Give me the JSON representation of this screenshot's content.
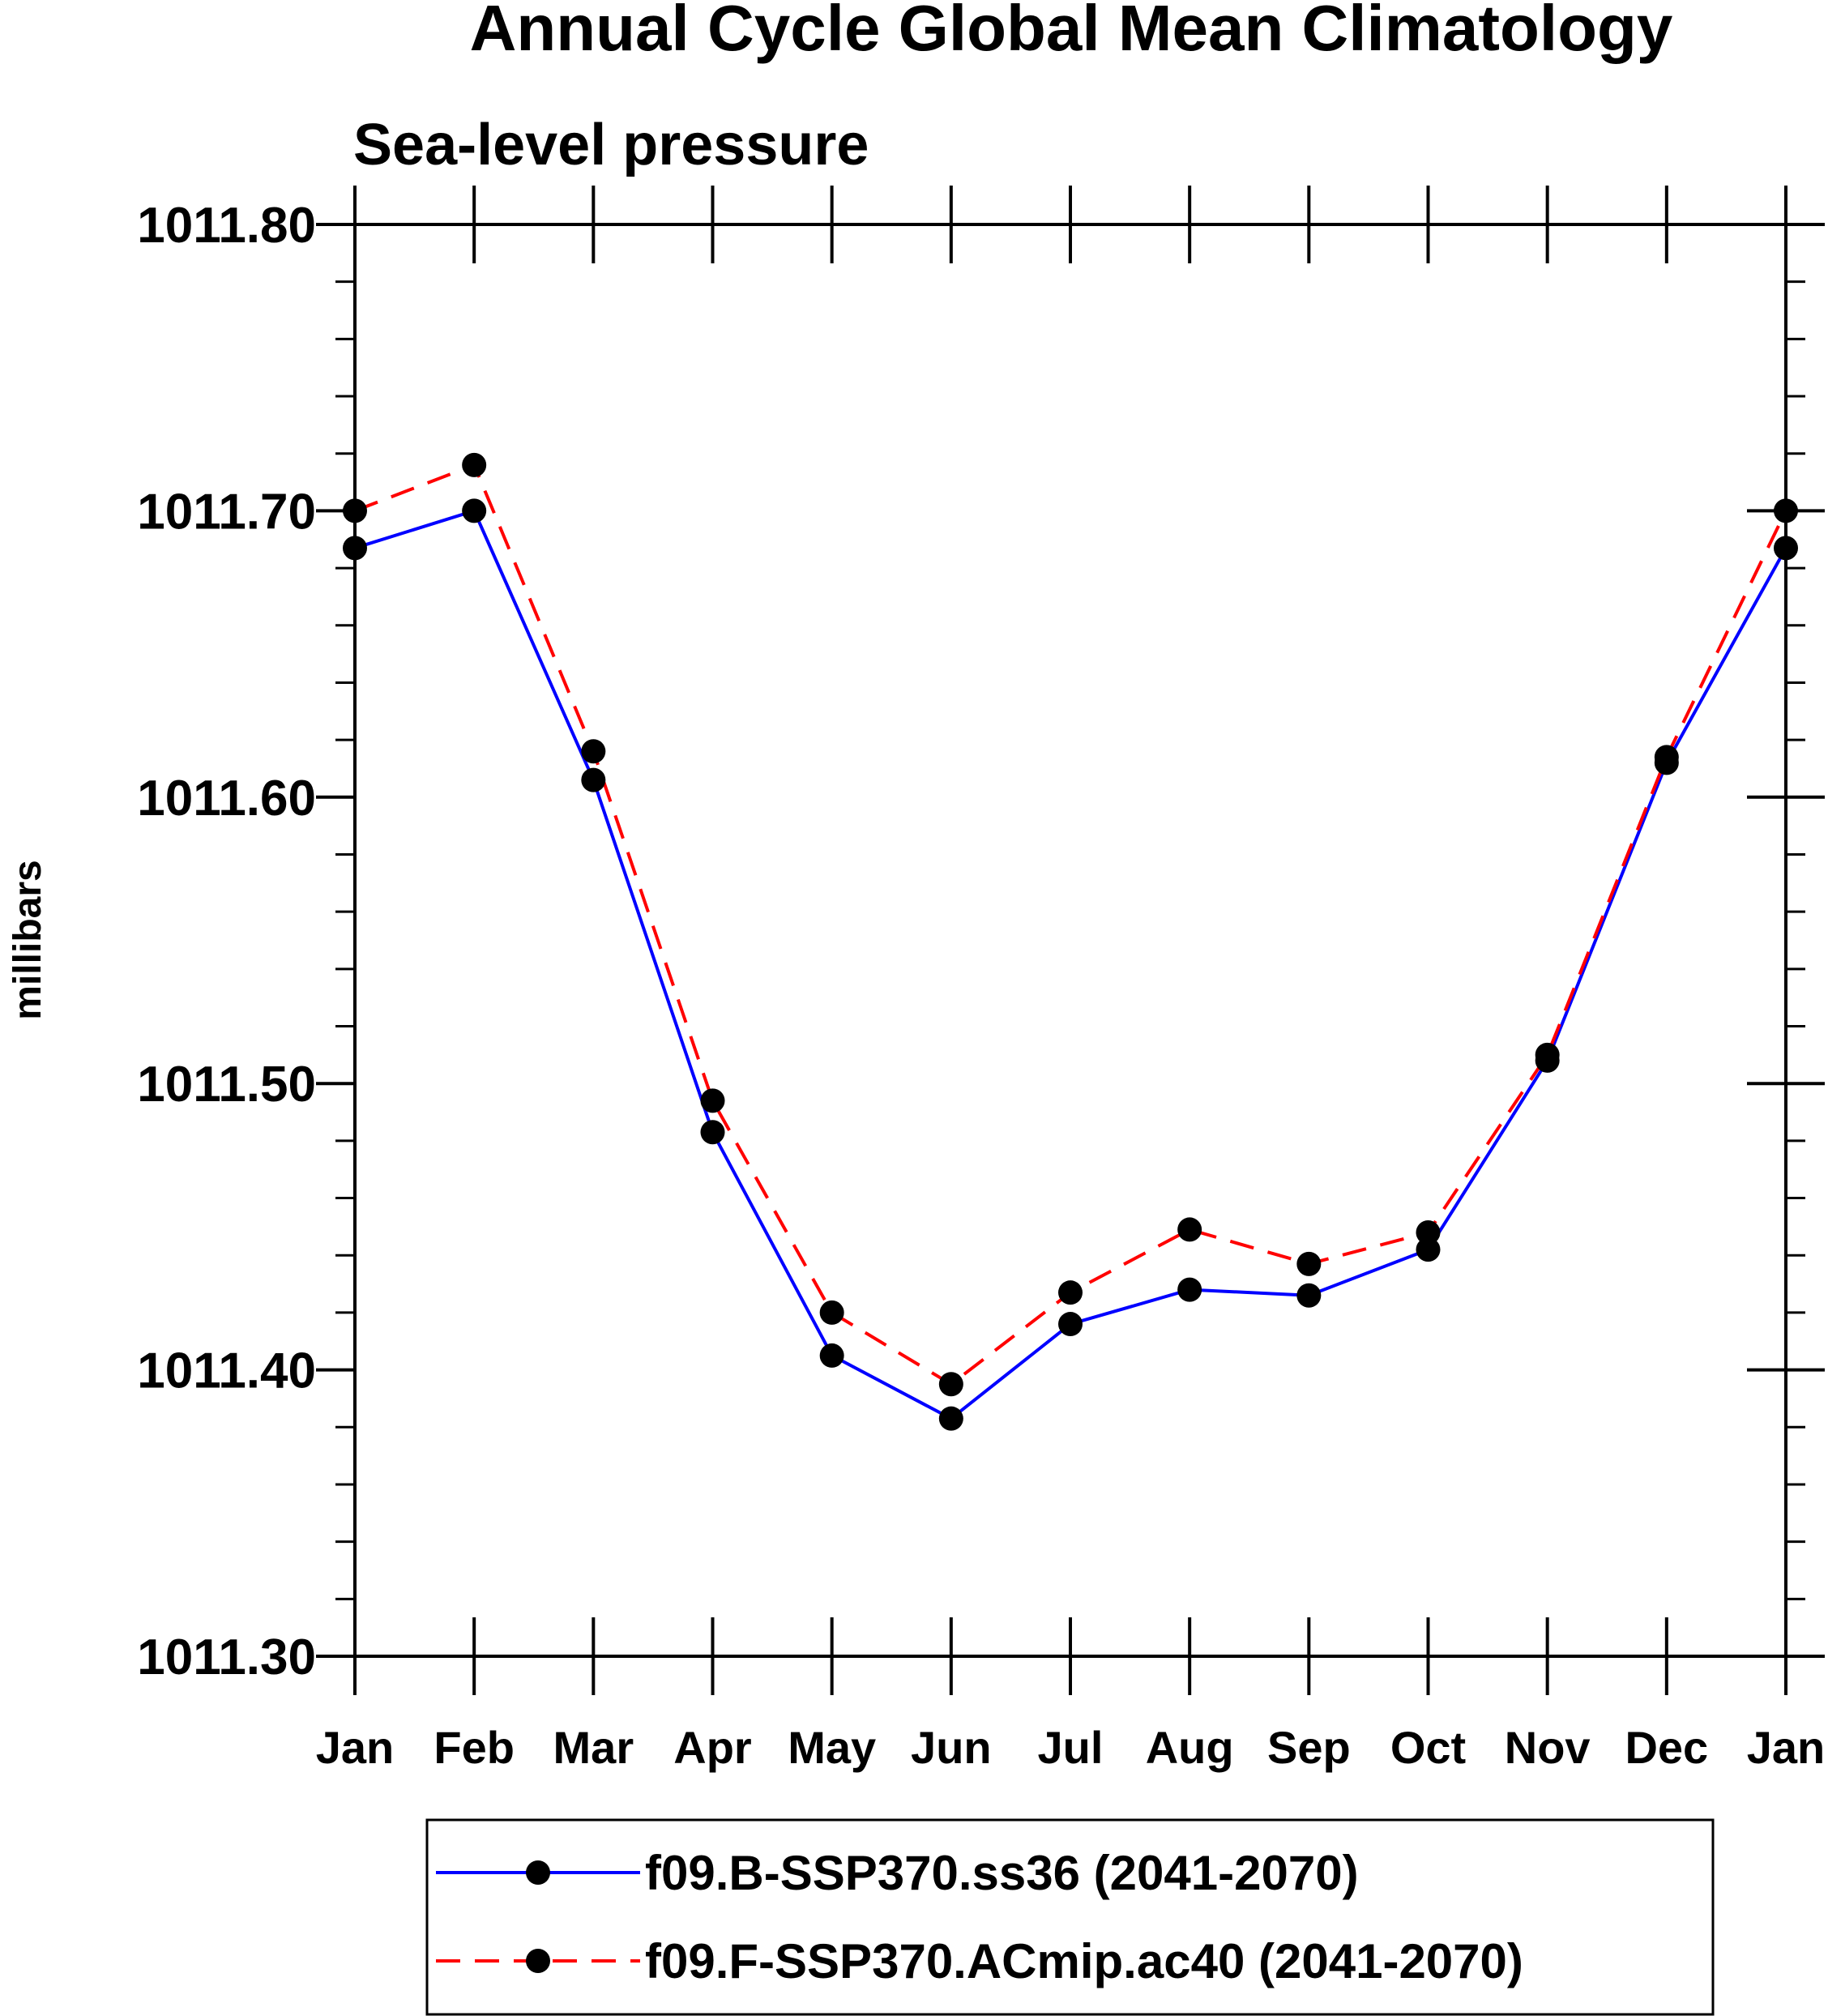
{
  "chart_data": {
    "type": "line",
    "title": "Annual Cycle Global Mean Climatology",
    "subtitle": "Sea-level pressure",
    "xlabel": "",
    "ylabel": "millibars",
    "categories": [
      "Jan",
      "Feb",
      "Mar",
      "Apr",
      "May",
      "Jun",
      "Jul",
      "Aug",
      "Sep",
      "Oct",
      "Nov",
      "Dec",
      "Jan"
    ],
    "ylim": [
      1011.3,
      1011.8
    ],
    "yticks": [
      "1011.30",
      "1011.40",
      "1011.50",
      "1011.60",
      "1011.70",
      "1011.80"
    ],
    "ytick_values": [
      1011.3,
      1011.4,
      1011.5,
      1011.6,
      1011.7,
      1011.8
    ],
    "yminor_step": 0.02,
    "grid": false,
    "legend_position": "bottom-center",
    "series": [
      {
        "name": "f09.B-SSP370.ss36 (2041-2070)",
        "color": "#0000ff",
        "line_style": "solid",
        "marker": "filled-circle",
        "values": [
          1011.687,
          1011.7,
          1011.606,
          1011.483,
          1011.405,
          1011.383,
          1011.416,
          1011.428,
          1011.426,
          1011.442,
          1011.508,
          1011.612,
          1011.687
        ]
      },
      {
        "name": "f09.F-SSP370.ACmip.ac40 (2041-2070)",
        "color": "#ff0000",
        "line_style": "dashed",
        "marker": "filled-circle",
        "values": [
          1011.7,
          1011.716,
          1011.616,
          1011.494,
          1011.42,
          1011.395,
          1011.427,
          1011.449,
          1011.437,
          1011.448,
          1011.51,
          1011.614,
          1011.7
        ]
      }
    ]
  }
}
